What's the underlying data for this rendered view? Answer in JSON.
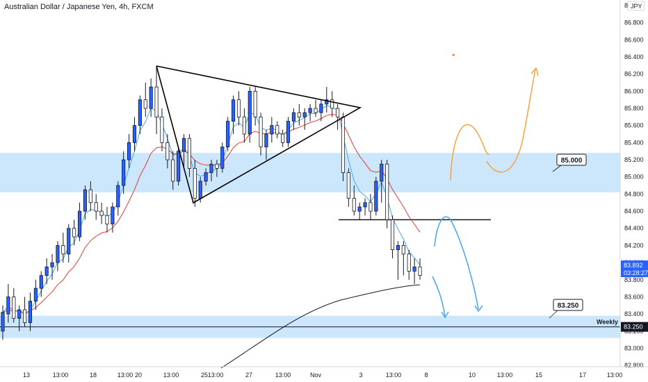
{
  "chart_title": "Australian Dollar / Japanese Yen, 4h, FXCM",
  "currency": "JPY",
  "price_tag": {
    "value": "83.892",
    "countdown": "03:28:27"
  },
  "weekly_tag": {
    "value": "83.250"
  },
  "annotations": {
    "bubble_85": "85.000",
    "bubble_8325": "83.250",
    "weekly": "Weekly"
  },
  "colors": {
    "bull": "#2962ff",
    "bear": "#ffffff",
    "ema_fast": "#42a5f5",
    "ema_slow": "#e53935",
    "sma_long": "#131722",
    "zone": "#bbdefb",
    "orange": "#f9a23a",
    "blue_path": "#42a5f5"
  },
  "chart_data": {
    "type": "candlestick",
    "title": "Australian Dollar / Japanese Yen, 4h, FXCM",
    "ylim": [
      82.72,
      87.0
    ],
    "y_ticks": [
      "87.000",
      "86.800",
      "86.600",
      "86.400",
      "86.200",
      "86.000",
      "85.800",
      "85.600",
      "85.400",
      "85.200",
      "85.000",
      "84.800",
      "84.600",
      "84.400",
      "84.200",
      "84.000",
      "83.800",
      "83.600",
      "83.400",
      "83.200",
      "83.000",
      "82.800"
    ],
    "x_ticks": [
      "13",
      "13:00",
      "18",
      "13:00",
      "20",
      "13:00",
      "25",
      "13:00",
      "27",
      "13:00",
      "Nov",
      "3",
      "13:00",
      "8",
      "10",
      "13:00",
      "15",
      "17",
      "13:00"
    ],
    "zones": [
      [
        84.82,
        85.28
      ],
      [
        83.12,
        83.38
      ]
    ],
    "horizontal_levels": [
      84.5,
      83.25
    ],
    "candles": [
      [
        83.2,
        83.5,
        83.1,
        83.42
      ],
      [
        83.4,
        83.75,
        83.3,
        83.6
      ],
      [
        83.6,
        83.7,
        83.3,
        83.35
      ],
      [
        83.35,
        83.5,
        83.2,
        83.45
      ],
      [
        83.45,
        83.6,
        83.25,
        83.3
      ],
      [
        83.3,
        83.65,
        83.2,
        83.55
      ],
      [
        83.55,
        83.8,
        83.45,
        83.7
      ],
      [
        83.7,
        83.9,
        83.6,
        83.85
      ],
      [
        83.85,
        84.05,
        83.75,
        83.95
      ],
      [
        83.95,
        84.1,
        83.8,
        84.0
      ],
      [
        84.0,
        84.25,
        83.9,
        84.2
      ],
      [
        84.2,
        84.35,
        84.0,
        84.1
      ],
      [
        84.1,
        84.45,
        84.0,
        84.4
      ],
      [
        84.4,
        84.5,
        84.2,
        84.3
      ],
      [
        84.3,
        84.7,
        84.25,
        84.6
      ],
      [
        84.6,
        84.9,
        84.5,
        84.85
      ],
      [
        84.85,
        84.95,
        84.6,
        84.7
      ],
      [
        84.7,
        84.8,
        84.5,
        84.6
      ],
      [
        84.6,
        84.7,
        84.45,
        84.55
      ],
      [
        84.55,
        84.65,
        84.35,
        84.45
      ],
      [
        84.45,
        84.7,
        84.35,
        84.65
      ],
      [
        84.65,
        84.95,
        84.55,
        84.9
      ],
      [
        84.9,
        85.3,
        84.8,
        85.2
      ],
      [
        85.2,
        85.5,
        85.1,
        85.4
      ],
      [
        85.4,
        85.7,
        85.3,
        85.6
      ],
      [
        85.6,
        85.95,
        85.5,
        85.9
      ],
      [
        85.9,
        86.1,
        85.7,
        85.8
      ],
      [
        85.8,
        86.15,
        85.7,
        86.05
      ],
      [
        86.05,
        86.28,
        85.5,
        85.7
      ],
      [
        85.7,
        85.8,
        85.3,
        85.4
      ],
      [
        85.4,
        85.5,
        85.1,
        85.2
      ],
      [
        85.2,
        85.3,
        84.85,
        84.95
      ],
      [
        84.95,
        85.35,
        84.9,
        85.3
      ],
      [
        85.3,
        85.5,
        85.1,
        85.45
      ],
      [
        85.45,
        85.5,
        85.0,
        85.1
      ],
      [
        85.1,
        85.2,
        84.65,
        84.75
      ],
      [
        84.75,
        85.0,
        84.7,
        84.95
      ],
      [
        84.95,
        85.1,
        84.9,
        85.05
      ],
      [
        85.05,
        85.2,
        84.95,
        85.15
      ],
      [
        85.15,
        85.2,
        85.0,
        85.1
      ],
      [
        85.1,
        85.4,
        85.05,
        85.35
      ],
      [
        85.35,
        85.7,
        85.3,
        85.65
      ],
      [
        85.65,
        85.95,
        85.5,
        85.9
      ],
      [
        85.9,
        86.0,
        85.6,
        85.7
      ],
      [
        85.7,
        85.8,
        85.4,
        85.5
      ],
      [
        85.5,
        86.05,
        85.4,
        86.0
      ],
      [
        86.0,
        86.05,
        85.6,
        85.7
      ],
      [
        85.7,
        85.75,
        85.25,
        85.35
      ],
      [
        85.35,
        85.55,
        85.2,
        85.5
      ],
      [
        85.5,
        85.7,
        85.4,
        85.6
      ],
      [
        85.6,
        85.65,
        85.45,
        85.5
      ],
      [
        85.5,
        85.55,
        85.35,
        85.4
      ],
      [
        85.4,
        85.7,
        85.35,
        85.65
      ],
      [
        85.65,
        85.8,
        85.55,
        85.75
      ],
      [
        85.75,
        85.85,
        85.6,
        85.7
      ],
      [
        85.7,
        85.8,
        85.55,
        85.75
      ],
      [
        85.75,
        85.85,
        85.65,
        85.8
      ],
      [
        85.8,
        85.9,
        85.7,
        85.75
      ],
      [
        85.75,
        85.9,
        85.65,
        85.85
      ],
      [
        85.85,
        86.05,
        85.75,
        85.9
      ],
      [
        85.9,
        86.0,
        85.7,
        85.8
      ],
      [
        85.8,
        85.85,
        85.55,
        85.7
      ],
      [
        85.7,
        85.75,
        84.95,
        85.05
      ],
      [
        85.05,
        85.1,
        84.65,
        84.75
      ],
      [
        84.75,
        84.9,
        84.55,
        84.6
      ],
      [
        84.6,
        84.7,
        84.5,
        84.65
      ],
      [
        84.65,
        84.75,
        84.55,
        84.7
      ],
      [
        84.7,
        84.8,
        84.5,
        84.6
      ],
      [
        84.6,
        85.0,
        84.55,
        84.95
      ],
      [
        84.95,
        85.2,
        84.7,
        85.15
      ],
      [
        85.15,
        85.2,
        84.4,
        84.5
      ],
      [
        84.5,
        84.55,
        84.05,
        84.15
      ],
      [
        84.15,
        84.25,
        83.8,
        84.2
      ],
      [
        84.2,
        84.25,
        83.85,
        84.1
      ],
      [
        84.1,
        84.15,
        83.8,
        83.9
      ],
      [
        83.9,
        84.05,
        83.75,
        83.95
      ],
      [
        83.95,
        84.05,
        83.8,
        83.85
      ]
    ]
  }
}
